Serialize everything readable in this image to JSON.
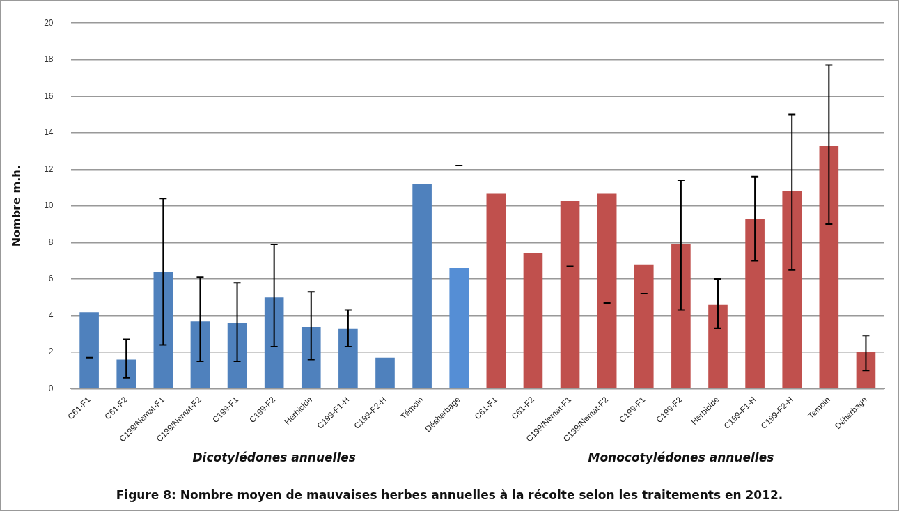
{
  "chart_data": {
    "type": "bar",
    "title": "Figure 8: Nombre moyen de mauvaises herbes annuelles à la récolte selon les traitements en 2012.",
    "ylabel": "Nombre m.h.",
    "categories": [
      "C61-F1",
      "C61-F2",
      "C199/Nemat-F1",
      "C199/Nemat-F2",
      "C199-F1",
      "C199-F2",
      "Herbicide",
      "C199-F1-H",
      "C199-F2-H",
      "Témoin",
      "Désherbage",
      "C61-F1",
      "C61-F2",
      "C199/Nemat-F1",
      "C199/Nemat-F2",
      "C199-F1",
      "C199-F2",
      "Herbicide",
      "C199-F1-H",
      "C199-F2-H",
      "Temoin",
      "Déherbage"
    ],
    "values": [
      4.2,
      1.6,
      6.4,
      3.7,
      3.6,
      5.0,
      3.4,
      3.3,
      1.7,
      11.2,
      6.6,
      10.7,
      7.4,
      10.3,
      10.7,
      6.8,
      7.9,
      4.6,
      9.3,
      10.8,
      13.3,
      2.0
    ],
    "errors": [
      [
        1.7,
        1.7
      ],
      [
        0.6,
        2.7
      ],
      [
        2.4,
        10.4
      ],
      [
        1.5,
        6.1
      ],
      [
        1.5,
        5.8
      ],
      [
        2.3,
        7.9
      ],
      [
        1.6,
        5.3
      ],
      [
        2.3,
        4.3
      ],
      null,
      null,
      [
        12.2,
        12.2
      ],
      null,
      null,
      [
        6.7,
        6.7
      ],
      [
        4.7,
        4.7
      ],
      [
        5.2,
        5.2
      ],
      [
        4.3,
        11.4
      ],
      [
        3.3,
        6.0
      ],
      [
        7.0,
        11.6
      ],
      [
        6.5,
        15.0
      ],
      [
        9.0,
        17.7
      ],
      [
        1.0,
        2.9
      ]
    ],
    "colors": [
      "#4f81bd",
      "#4f81bd",
      "#4f81bd",
      "#4f81bd",
      "#4f81bd",
      "#4f81bd",
      "#4f81bd",
      "#4f81bd",
      "#4f81bd",
      "#4f81bd",
      "#558ed5",
      "#c0504d",
      "#c0504d",
      "#c0504d",
      "#c0504d",
      "#c0504d",
      "#c0504d",
      "#c0504d",
      "#c0504d",
      "#c0504d",
      "#c0504d",
      "#c0504d"
    ],
    "ylim": [
      0,
      20
    ],
    "yticks": [
      0,
      2,
      4,
      6,
      8,
      10,
      12,
      14,
      16,
      18,
      20
    ],
    "grid": "y",
    "annotations": [
      "Dicotylédones annuelles",
      "Monocotylédones annuelles"
    ]
  }
}
